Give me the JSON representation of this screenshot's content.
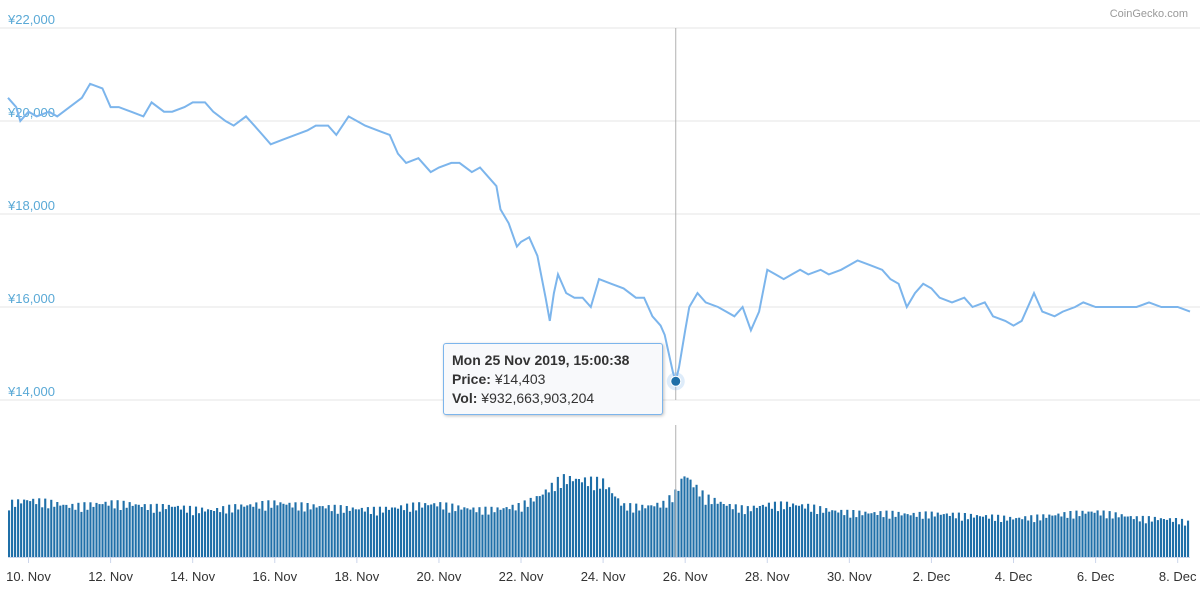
{
  "credit": "CoinGecko.com",
  "tooltip": {
    "date": "Mon 25 Nov 2019, 15:00:38",
    "price_label": "Price:",
    "price_value": "¥14,403",
    "vol_label": "Vol:",
    "vol_value": "¥932,663,903,204"
  },
  "colors": {
    "line": "#7cb5ec",
    "volume": "#1f6fa8",
    "marker": "#1f6fa8",
    "ylabel": "#5aa9d6"
  },
  "chart_data": [
    {
      "type": "line",
      "title": "",
      "ylabel": "",
      "ylim": [
        14000,
        22000
      ],
      "ytick_labels": [
        "¥22,000",
        "¥20,000",
        "¥18,000",
        "¥16,000",
        "¥14,000"
      ],
      "yticks": [
        22000,
        20000,
        18000,
        16000,
        14000
      ],
      "xlim": [
        9.5,
        38.3
      ],
      "xtick_labels": [
        "10. Nov",
        "12. Nov",
        "14. Nov",
        "16. Nov",
        "18. Nov",
        "20. Nov",
        "22. Nov",
        "24. Nov",
        "26. Nov",
        "28. Nov",
        "30. Nov",
        "2. Dec",
        "4. Dec",
        "6. Dec",
        "8. Dec"
      ],
      "xticks": [
        10,
        12,
        14,
        16,
        18,
        20,
        22,
        24,
        26,
        28,
        30,
        32,
        34,
        36,
        38
      ],
      "grid": true,
      "series": [
        {
          "x": [
            9.5,
            9.7,
            9.8,
            10.0,
            10.2,
            10.5,
            10.7,
            11.0,
            11.3,
            11.5,
            11.8,
            12.0,
            12.2,
            12.5,
            12.8,
            13.0,
            13.3,
            13.5,
            13.8,
            14.0,
            14.3,
            14.5,
            14.8,
            15.0,
            15.3,
            15.5,
            15.7,
            15.9,
            16.2,
            16.5,
            16.8,
            17.0,
            17.3,
            17.5,
            17.8,
            18.0,
            18.2,
            18.5,
            18.8,
            19.0,
            19.2,
            19.5,
            19.8,
            20.0,
            20.3,
            20.5,
            20.8,
            21.0,
            21.2,
            21.4,
            21.5,
            21.7,
            21.9,
            22.0,
            22.2,
            22.4,
            22.6,
            22.7,
            22.8,
            22.9,
            23.1,
            23.3,
            23.5,
            23.7,
            23.9,
            24.2,
            24.5,
            24.8,
            25.0,
            25.2,
            25.4,
            25.5,
            25.6,
            25.7,
            25.77,
            25.85,
            26.0,
            26.1,
            26.3,
            26.5,
            26.8,
            27.0,
            27.2,
            27.4,
            27.6,
            27.8,
            28.0,
            28.2,
            28.4,
            28.6,
            28.8,
            29.0,
            29.3,
            29.5,
            29.8,
            30.0,
            30.2,
            30.5,
            30.8,
            31.0,
            31.2,
            31.4,
            31.6,
            31.8,
            32.0,
            32.2,
            32.5,
            32.8,
            33.0,
            33.3,
            33.5,
            33.8,
            34.0,
            34.2,
            34.5,
            34.7,
            35.0,
            35.2,
            35.5,
            35.7,
            36.0,
            36.3,
            36.6,
            37.0,
            37.3,
            37.6,
            38.0,
            38.3
          ],
          "y": [
            20500,
            20300,
            20000,
            20200,
            20100,
            20200,
            20100,
            20300,
            20500,
            20800,
            20700,
            20300,
            20300,
            20200,
            20100,
            20400,
            20200,
            20200,
            20300,
            20400,
            20400,
            20200,
            20000,
            19900,
            20100,
            19900,
            19700,
            19500,
            19600,
            19700,
            19800,
            19900,
            19900,
            19700,
            20100,
            20000,
            19900,
            19800,
            19700,
            19300,
            19100,
            19200,
            18900,
            19000,
            19100,
            19100,
            18900,
            19000,
            18800,
            18600,
            18100,
            17800,
            17300,
            17400,
            17500,
            17100,
            16200,
            15700,
            16300,
            16700,
            16300,
            16200,
            16200,
            16000,
            16600,
            16500,
            16400,
            16200,
            16200,
            15800,
            15600,
            15400,
            15000,
            14600,
            14403,
            14700,
            15500,
            16000,
            16300,
            16100,
            16000,
            15900,
            15800,
            16000,
            15500,
            15900,
            16800,
            16700,
            16600,
            16700,
            16800,
            16700,
            16800,
            16700,
            16800,
            16900,
            17000,
            16900,
            16800,
            16600,
            16500,
            16000,
            16300,
            16500,
            16400,
            16200,
            16100,
            16200,
            16000,
            16100,
            15800,
            15700,
            15600,
            15700,
            16300,
            15900,
            15800,
            15900,
            16000,
            16100,
            16000,
            16000,
            16000,
            16000,
            16100,
            16000,
            16000,
            15900
          ]
        }
      ],
      "highlight": {
        "x": 25.77,
        "y": 14403
      }
    },
    {
      "type": "bar",
      "title": "",
      "ylabel": "",
      "xlim": [
        9.5,
        38.3
      ],
      "ylim": [
        0,
        2000000000000
      ],
      "series": [
        {
          "x": [
            9.5,
            10.0,
            10.5,
            11.0,
            11.5,
            12.0,
            12.5,
            13.0,
            13.5,
            14.0,
            14.5,
            15.0,
            15.5,
            16.0,
            16.5,
            17.0,
            17.5,
            18.0,
            18.5,
            19.0,
            19.5,
            20.0,
            20.5,
            21.0,
            21.5,
            22.0,
            22.5,
            23.0,
            23.5,
            24.0,
            24.5,
            25.0,
            25.5,
            25.77,
            26.0,
            26.3,
            26.5,
            27.0,
            27.5,
            28.0,
            28.5,
            29.0,
            29.5,
            30.0,
            30.5,
            31.0,
            31.5,
            32.0,
            32.5,
            33.0,
            33.5,
            34.0,
            34.5,
            35.0,
            35.5,
            36.0,
            36.5,
            37.0,
            37.5,
            38.0,
            38.3
          ],
          "y": [
            780000000000,
            830000000000,
            800000000000,
            740000000000,
            760000000000,
            790000000000,
            770000000000,
            730000000000,
            740000000000,
            700000000000,
            680000000000,
            730000000000,
            760000000000,
            790000000000,
            760000000000,
            740000000000,
            720000000000,
            700000000000,
            690000000000,
            720000000000,
            760000000000,
            770000000000,
            720000000000,
            690000000000,
            700000000000,
            750000000000,
            900000000000,
            1150000000000,
            1120000000000,
            1100000000000,
            750000000000,
            730000000000,
            780000000000,
            932663903204,
            1200000000000,
            1000000000000,
            880000000000,
            760000000000,
            700000000000,
            760000000000,
            770000000000,
            740000000000,
            680000000000,
            650000000000,
            640000000000,
            640000000000,
            620000000000,
            630000000000,
            620000000000,
            600000000000,
            590000000000,
            560000000000,
            580000000000,
            610000000000,
            640000000000,
            660000000000,
            620000000000,
            570000000000,
            560000000000,
            540000000000,
            500000000000
          ]
        }
      ]
    }
  ]
}
